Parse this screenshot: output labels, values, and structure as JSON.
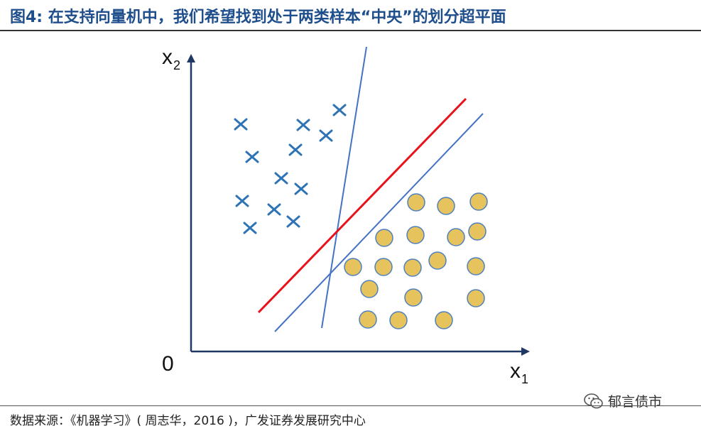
{
  "figure": {
    "title": "图4:  在支持向量机中，我们希望找到处于两类样本“中央”的划分超平面",
    "source": "数据来源：《机器学习》( 周志华，2016 )，广发证券发展研究中心",
    "watermark": "郁言债市",
    "watermark_icon": "wechat-icon"
  },
  "axes": {
    "x_label": "x",
    "x_sub": "1",
    "y_label": "x",
    "y_sub": "2",
    "origin_label": "0"
  },
  "colors": {
    "cross": "#2e74b5",
    "circle_fill": "#e6c35c",
    "circle_stroke": "#4f81bd",
    "line_red": "#e8121a",
    "line_blue": "#4472c4",
    "axis": "#1f3864",
    "title": "#1f4e8c"
  }
}
